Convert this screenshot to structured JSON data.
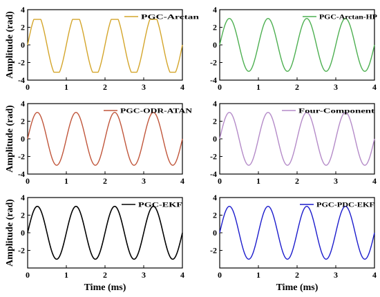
{
  "chart_data": [
    {
      "type": "line",
      "legend": "PGC-Arctan",
      "color": "#d4a52a",
      "ylabel": "Amplitude (rad)",
      "xlabel": "",
      "xlim": [
        0,
        4
      ],
      "ylim": [
        -4,
        4
      ],
      "xticks": [
        "0",
        "1",
        "2",
        "3",
        "4"
      ],
      "yticks": [
        "-4",
        "-2",
        "0",
        "2",
        "4"
      ],
      "legend_position": "top-right",
      "waveform": "clipped-sine",
      "frequency_per_ms": 1.0,
      "amplitude": 3.0,
      "x": [
        0.0,
        0.1,
        0.2,
        0.25,
        0.3,
        0.4,
        0.5,
        0.6,
        0.7,
        0.75,
        0.8,
        0.9,
        1.0
      ],
      "y": [
        0.0,
        1.8,
        2.8,
        2.9,
        2.8,
        1.8,
        0.0,
        -1.8,
        -3.0,
        -3.1,
        -3.0,
        -1.8,
        0.0
      ]
    },
    {
      "type": "line",
      "legend": "PGC-Arctan-HP",
      "color": "#4caf50",
      "ylabel": "",
      "xlabel": "",
      "xlim": [
        0,
        4
      ],
      "ylim": [
        -4,
        4
      ],
      "xticks": [
        "0",
        "1",
        "2",
        "3",
        "4"
      ],
      "yticks": [
        "-4",
        "-2",
        "0",
        "2",
        "4"
      ],
      "legend_position": "top-right",
      "waveform": "sine",
      "frequency_per_ms": 1.0,
      "amplitude": 3.0,
      "x": [
        0.0,
        0.25,
        0.5,
        0.75,
        1.0
      ],
      "y": [
        0.0,
        3.0,
        0.0,
        -3.0,
        0.0
      ]
    },
    {
      "type": "line",
      "legend": "PGC-ODR-ATAN",
      "color": "#c0553a",
      "ylabel": "Amplitude (rad)",
      "xlabel": "",
      "xlim": [
        0,
        4
      ],
      "ylim": [
        -4,
        4
      ],
      "xticks": [
        "0",
        "1",
        "2",
        "3",
        "4"
      ],
      "yticks": [
        "-4",
        "-2",
        "0",
        "2",
        "4"
      ],
      "legend_position": "top-right",
      "waveform": "sine",
      "frequency_per_ms": 1.0,
      "amplitude": 3.0,
      "x": [
        0.0,
        0.25,
        0.5,
        0.75,
        1.0
      ],
      "y": [
        0.0,
        3.0,
        0.0,
        -3.0,
        0.0
      ]
    },
    {
      "type": "line",
      "legend": "Four-Component",
      "color": "#b48ac8",
      "ylabel": "",
      "xlabel": "",
      "xlim": [
        0,
        4
      ],
      "ylim": [
        -4,
        4
      ],
      "xticks": [
        "0",
        "1",
        "2",
        "3",
        "4"
      ],
      "yticks": [
        "-4",
        "-2",
        "0",
        "2",
        "4"
      ],
      "legend_position": "top-right",
      "waveform": "sine",
      "frequency_per_ms": 1.0,
      "amplitude": 3.0,
      "x": [
        0.0,
        0.25,
        0.5,
        0.75,
        1.0
      ],
      "y": [
        0.0,
        3.0,
        0.0,
        -3.0,
        0.0
      ]
    },
    {
      "type": "line",
      "legend": "PGC-EKF",
      "color": "#000000",
      "ylabel": "Amplitude (rad)",
      "xlabel": "Time (ms)",
      "xlim": [
        0,
        4
      ],
      "ylim": [
        -4,
        4
      ],
      "xticks": [
        "0",
        "1",
        "2",
        "3",
        "4"
      ],
      "yticks": [
        "-2",
        "0",
        "2",
        "4"
      ],
      "legend_position": "top-right",
      "waveform": "sine",
      "frequency_per_ms": 1.0,
      "amplitude": 3.0,
      "x": [
        0.0,
        0.25,
        0.5,
        0.75,
        1.0
      ],
      "y": [
        0.0,
        3.0,
        0.0,
        -3.0,
        0.0
      ]
    },
    {
      "type": "line",
      "legend": "PGC-PDC-EKF",
      "color": "#1a1acc",
      "ylabel": "",
      "xlabel": "Time (ms)",
      "xlim": [
        0,
        4
      ],
      "ylim": [
        -4,
        4
      ],
      "xticks": [
        "0",
        "1",
        "2",
        "3",
        "4"
      ],
      "yticks": [
        "-2",
        "0",
        "2",
        "4"
      ],
      "legend_position": "top-right",
      "waveform": "sine",
      "frequency_per_ms": 1.0,
      "amplitude": 3.0,
      "x": [
        0.0,
        0.25,
        0.5,
        0.75,
        1.0
      ],
      "y": [
        0.0,
        3.0,
        0.0,
        -3.0,
        0.0
      ]
    }
  ]
}
